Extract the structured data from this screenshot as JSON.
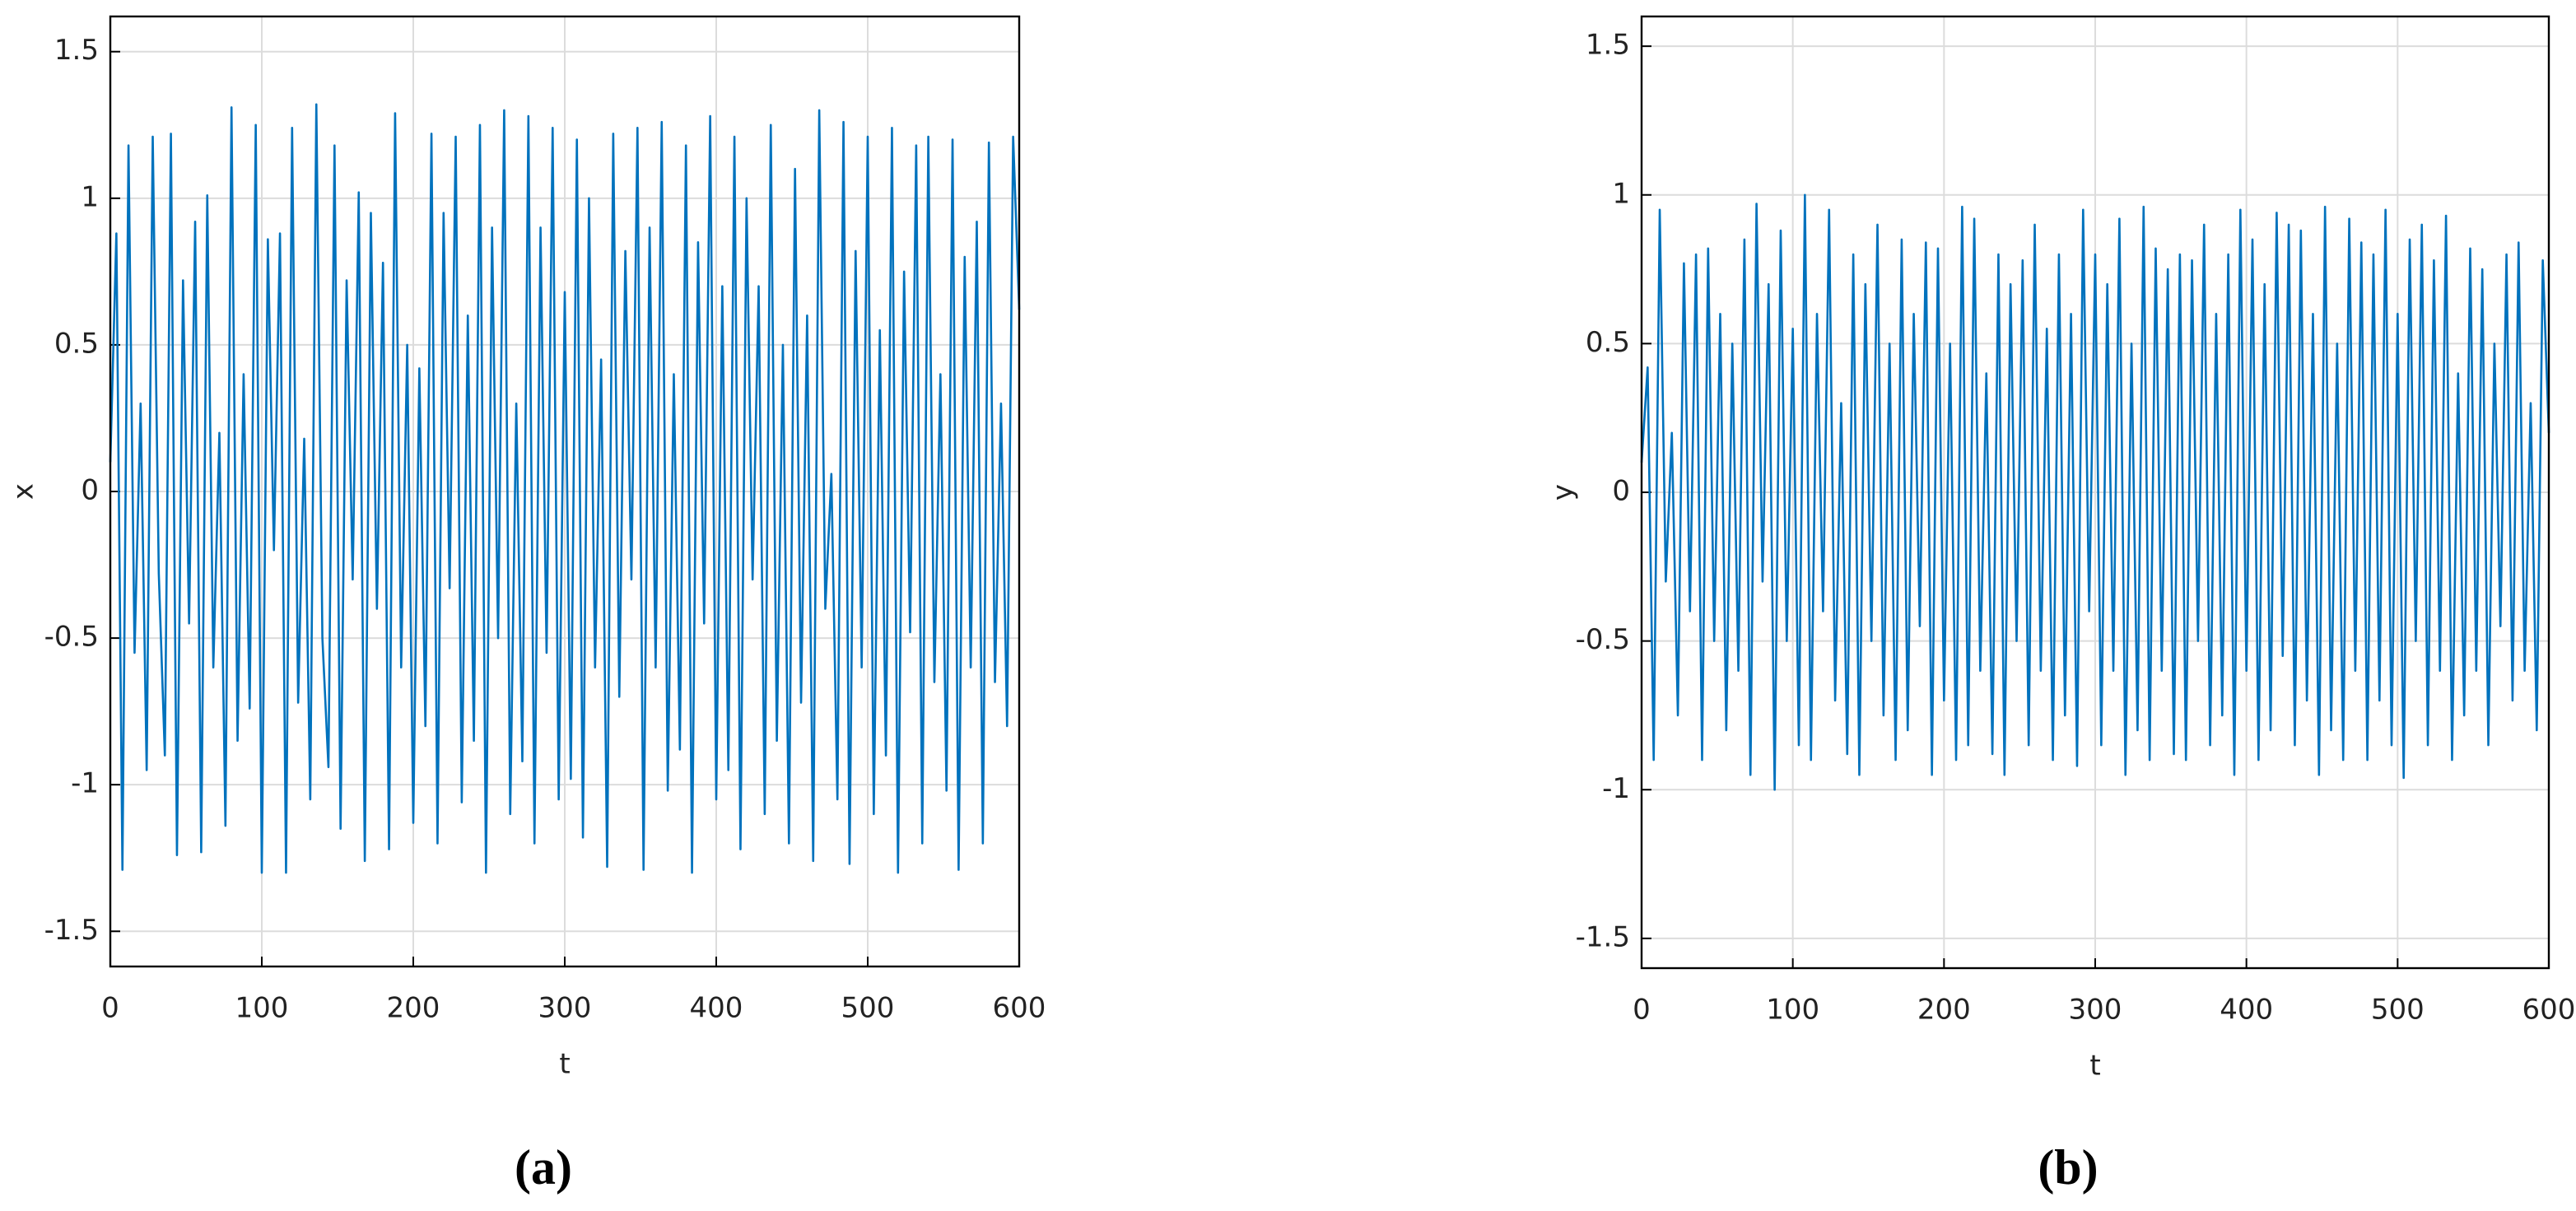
{
  "chart_data": [
    {
      "type": "line",
      "xlabel": "t",
      "ylabel": "x",
      "caption": "(a)",
      "color": "#0072bd",
      "grid": true,
      "xlim": [
        0,
        600
      ],
      "xticks": [
        0,
        100,
        200,
        300,
        400,
        500,
        600
      ],
      "ylim": [
        -1.62,
        1.62
      ],
      "yticks": [
        -1.5,
        -1,
        -0.5,
        0,
        0.5,
        1,
        1.5
      ],
      "x": [
        0,
        4,
        8,
        12,
        16,
        20,
        24,
        28,
        32,
        36,
        40,
        44,
        48,
        52,
        56,
        60,
        64,
        68,
        72,
        76,
        80,
        84,
        88,
        92,
        96,
        100,
        104,
        108,
        112,
        116,
        120,
        124,
        128,
        132,
        136,
        140,
        144,
        148,
        152,
        156,
        160,
        164,
        168,
        172,
        176,
        180,
        184,
        188,
        192,
        196,
        200,
        204,
        208,
        212,
        216,
        220,
        224,
        228,
        232,
        236,
        240,
        244,
        248,
        252,
        256,
        260,
        264,
        268,
        272,
        276,
        280,
        284,
        288,
        292,
        296,
        300,
        304,
        308,
        312,
        316,
        320,
        324,
        328,
        332,
        336,
        340,
        344,
        348,
        352,
        356,
        360,
        364,
        368,
        372,
        376,
        380,
        384,
        388,
        392,
        396,
        400,
        404,
        408,
        412,
        416,
        420,
        424,
        428,
        432,
        436,
        440,
        444,
        448,
        452,
        456,
        460,
        464,
        468,
        472,
        476,
        480,
        484,
        488,
        492,
        496,
        500,
        504,
        508,
        512,
        516,
        520,
        524,
        528,
        532,
        536,
        540,
        544,
        548,
        552,
        556,
        560,
        564,
        568,
        572,
        576,
        580,
        584,
        588,
        592,
        596,
        600
      ],
      "values": [
        0.1,
        0.88,
        -1.29,
        1.18,
        -0.55,
        0.3,
        -0.95,
        1.21,
        -0.28,
        -0.9,
        1.22,
        -1.24,
        0.72,
        -0.45,
        0.92,
        -1.23,
        1.01,
        -0.6,
        0.2,
        -1.14,
        1.31,
        -0.85,
        0.4,
        -0.74,
        1.25,
        -1.3,
        0.86,
        -0.2,
        0.88,
        -1.3,
        1.24,
        -0.72,
        0.18,
        -1.05,
        1.32,
        -0.5,
        -0.94,
        1.18,
        -1.15,
        0.72,
        -0.3,
        1.02,
        -1.26,
        0.95,
        -0.4,
        0.78,
        -1.22,
        1.29,
        -0.6,
        0.5,
        -1.13,
        0.42,
        -0.8,
        1.22,
        -1.2,
        0.95,
        -0.33,
        1.21,
        -1.06,
        0.6,
        -0.85,
        1.25,
        -1.3,
        0.9,
        -0.5,
        1.3,
        -1.1,
        0.3,
        -0.92,
        1.28,
        -1.2,
        0.9,
        -0.55,
        1.24,
        -1.05,
        0.68,
        -0.98,
        1.2,
        -1.18,
        1.0,
        -0.6,
        0.45,
        -1.28,
        1.22,
        -0.7,
        0.82,
        -0.3,
        1.24,
        -1.29,
        0.9,
        -0.6,
        1.26,
        -1.02,
        0.4,
        -0.88,
        1.18,
        -1.3,
        0.85,
        -0.45,
        1.28,
        -1.05,
        0.7,
        -0.95,
        1.21,
        -1.22,
        1.0,
        -0.3,
        0.7,
        -1.1,
        1.25,
        -0.85,
        0.5,
        -1.2,
        1.1,
        -0.72,
        0.6,
        -1.26,
        1.3,
        -0.4,
        0.06,
        -1.05,
        1.26,
        -1.27,
        0.82,
        -0.6,
        1.21,
        -1.1,
        0.55,
        -0.9,
        1.24,
        -1.3,
        0.75,
        -0.48,
        1.18,
        -1.2,
        1.21,
        -0.65,
        0.4,
        -1.02,
        1.2,
        -1.29,
        0.8,
        -0.6,
        0.92,
        -1.2,
        1.19,
        -0.65,
        0.3,
        -0.8,
        1.21,
        0.62
      ]
    },
    {
      "type": "line",
      "xlabel": "t",
      "ylabel": "y",
      "caption": "(b)",
      "color": "#0072bd",
      "grid": true,
      "xlim": [
        0,
        600
      ],
      "xticks": [
        0,
        100,
        200,
        300,
        400,
        500,
        600
      ],
      "ylim": [
        -1.6,
        1.6
      ],
      "yticks": [
        -1.5,
        -1,
        -0.5,
        0,
        0.5,
        1,
        1.5
      ],
      "x": [
        0,
        4,
        8,
        12,
        16,
        20,
        24,
        28,
        32,
        36,
        40,
        44,
        48,
        52,
        56,
        60,
        64,
        68,
        72,
        76,
        80,
        84,
        88,
        92,
        96,
        100,
        104,
        108,
        112,
        116,
        120,
        124,
        128,
        132,
        136,
        140,
        144,
        148,
        152,
        156,
        160,
        164,
        168,
        172,
        176,
        180,
        184,
        188,
        192,
        196,
        200,
        204,
        208,
        212,
        216,
        220,
        224,
        228,
        232,
        236,
        240,
        244,
        248,
        252,
        256,
        260,
        264,
        268,
        272,
        276,
        280,
        284,
        288,
        292,
        296,
        300,
        304,
        308,
        312,
        316,
        320,
        324,
        328,
        332,
        336,
        340,
        344,
        348,
        352,
        356,
        360,
        364,
        368,
        372,
        376,
        380,
        384,
        388,
        392,
        396,
        400,
        404,
        408,
        412,
        416,
        420,
        424,
        428,
        432,
        436,
        440,
        444,
        448,
        452,
        456,
        460,
        464,
        468,
        472,
        476,
        480,
        484,
        488,
        492,
        496,
        500,
        504,
        508,
        512,
        516,
        520,
        524,
        528,
        532,
        536,
        540,
        544,
        548,
        552,
        556,
        560,
        564,
        568,
        572,
        576,
        580,
        584,
        588,
        592,
        596,
        600
      ],
      "values": [
        0.1,
        0.42,
        -0.9,
        0.95,
        -0.3,
        0.2,
        -0.75,
        0.77,
        -0.4,
        0.8,
        -0.9,
        0.82,
        -0.5,
        0.6,
        -0.8,
        0.5,
        -0.6,
        0.85,
        -0.95,
        0.97,
        -0.3,
        0.7,
        -1.0,
        0.88,
        -0.5,
        0.55,
        -0.85,
        1.0,
        -0.9,
        0.6,
        -0.4,
        0.95,
        -0.7,
        0.3,
        -0.88,
        0.8,
        -0.95,
        0.7,
        -0.5,
        0.9,
        -0.75,
        0.5,
        -0.9,
        0.85,
        -0.8,
        0.6,
        -0.45,
        0.84,
        -0.95,
        0.82,
        -0.7,
        0.5,
        -0.9,
        0.96,
        -0.85,
        0.92,
        -0.6,
        0.4,
        -0.88,
        0.8,
        -0.95,
        0.7,
        -0.5,
        0.78,
        -0.85,
        0.9,
        -0.6,
        0.55,
        -0.9,
        0.8,
        -0.75,
        0.6,
        -0.92,
        0.95,
        -0.4,
        0.8,
        -0.85,
        0.7,
        -0.6,
        0.92,
        -0.95,
        0.5,
        -0.8,
        0.96,
        -0.9,
        0.82,
        -0.6,
        0.75,
        -0.88,
        0.8,
        -0.9,
        0.78,
        -0.5,
        0.9,
        -0.85,
        0.6,
        -0.75,
        0.8,
        -0.95,
        0.95,
        -0.6,
        0.85,
        -0.9,
        0.7,
        -0.8,
        0.94,
        -0.55,
        0.9,
        -0.85,
        0.88,
        -0.7,
        0.6,
        -0.95,
        0.96,
        -0.8,
        0.5,
        -0.9,
        0.92,
        -0.6,
        0.84,
        -0.9,
        0.8,
        -0.7,
        0.95,
        -0.85,
        0.6,
        -0.96,
        0.85,
        -0.5,
        0.9,
        -0.85,
        0.78,
        -0.6,
        0.93,
        -0.9,
        0.4,
        -0.75,
        0.82,
        -0.6,
        0.75,
        -0.85,
        0.5,
        -0.45,
        0.8,
        -0.7,
        0.84,
        -0.6,
        0.3,
        -0.8,
        0.78,
        0.2
      ]
    }
  ]
}
